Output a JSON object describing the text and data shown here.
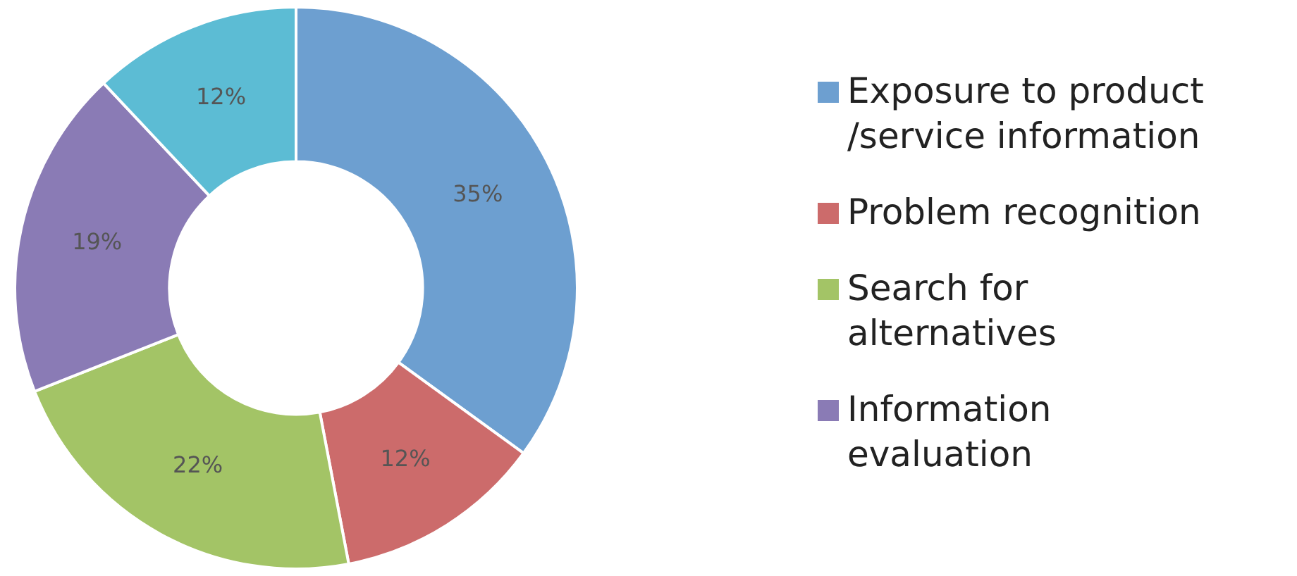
{
  "chart_data": {
    "type": "donut",
    "categories": [
      "Exposure to product /service information",
      "Problem recognition",
      "Search for alternatives",
      "Information evaluation",
      null
    ],
    "values": [
      35,
      12,
      22,
      19,
      12
    ],
    "colors": [
      "#6d9fd0",
      "#cc6b6b",
      "#a3c466",
      "#8a7bb5",
      "#5cbcd4"
    ],
    "value_labels": [
      "35%",
      "12%",
      "22%",
      "19%",
      "12%"
    ],
    "legend": "right"
  }
}
